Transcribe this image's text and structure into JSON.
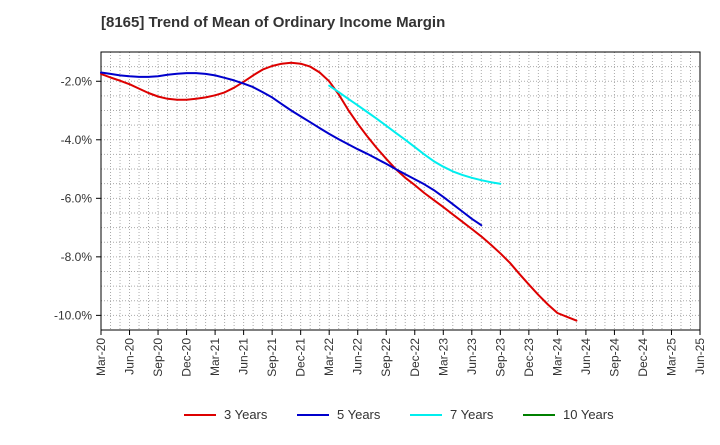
{
  "chart_data": {
    "type": "line",
    "title": "[8165]  Trend of Mean of Ordinary Income Margin",
    "xlabel": "",
    "ylabel": "",
    "x_ticks": [
      "Mar-20",
      "Jun-20",
      "Sep-20",
      "Dec-20",
      "Mar-21",
      "Jun-21",
      "Sep-21",
      "Dec-21",
      "Mar-22",
      "Jun-22",
      "Sep-22",
      "Dec-22",
      "Mar-23",
      "Jun-23",
      "Sep-23",
      "Dec-23",
      "Mar-24",
      "Jun-24",
      "Sep-24",
      "Dec-24",
      "Mar-25",
      "Jun-25"
    ],
    "y_ticks": [
      -2,
      -4,
      -6,
      -8,
      -10
    ],
    "y_tick_labels": [
      "-2.0%",
      "-4.0%",
      "-6.0%",
      "-8.0%",
      "-10.0%"
    ],
    "ylim": [
      -10.5,
      -1.0
    ],
    "grid": true,
    "legend_position": "bottom",
    "series": [
      {
        "name": "3 Years",
        "color": "#dd0000",
        "points": [
          [
            "Mar-20",
            -1.75
          ],
          [
            "Apr-20",
            -1.87
          ],
          [
            "May-20",
            -1.98
          ],
          [
            "Jun-20",
            -2.1
          ],
          [
            "Jul-20",
            -2.25
          ],
          [
            "Aug-20",
            -2.4
          ],
          [
            "Sep-20",
            -2.52
          ],
          [
            "Oct-20",
            -2.6
          ],
          [
            "Nov-20",
            -2.63
          ],
          [
            "Dec-20",
            -2.63
          ],
          [
            "Jan-21",
            -2.6
          ],
          [
            "Feb-21",
            -2.55
          ],
          [
            "Mar-21",
            -2.48
          ],
          [
            "Apr-21",
            -2.38
          ],
          [
            "May-21",
            -2.22
          ],
          [
            "Jun-21",
            -2.02
          ],
          [
            "Jul-21",
            -1.8
          ],
          [
            "Aug-21",
            -1.6
          ],
          [
            "Sep-21",
            -1.48
          ],
          [
            "Oct-21",
            -1.4
          ],
          [
            "Nov-21",
            -1.37
          ],
          [
            "Dec-21",
            -1.4
          ],
          [
            "Jan-22",
            -1.5
          ],
          [
            "Feb-22",
            -1.7
          ],
          [
            "Mar-22",
            -2.0
          ],
          [
            "Apr-22",
            -2.45
          ],
          [
            "May-22",
            -2.98
          ],
          [
            "Jun-22",
            -3.45
          ],
          [
            "Jul-22",
            -3.88
          ],
          [
            "Aug-22",
            -4.28
          ],
          [
            "Sep-22",
            -4.65
          ],
          [
            "Oct-22",
            -5.0
          ],
          [
            "Nov-22",
            -5.3
          ],
          [
            "Dec-22",
            -5.55
          ],
          [
            "Jan-23",
            -5.82
          ],
          [
            "Feb-23",
            -6.06
          ],
          [
            "Mar-23",
            -6.3
          ],
          [
            "Apr-23",
            -6.55
          ],
          [
            "May-23",
            -6.8
          ],
          [
            "Jun-23",
            -7.05
          ],
          [
            "Jul-23",
            -7.3
          ],
          [
            "Aug-23",
            -7.58
          ],
          [
            "Sep-23",
            -7.88
          ],
          [
            "Oct-23",
            -8.2
          ],
          [
            "Nov-23",
            -8.58
          ],
          [
            "Dec-23",
            -8.95
          ],
          [
            "Jan-24",
            -9.3
          ],
          [
            "Feb-24",
            -9.63
          ],
          [
            "Mar-24",
            -9.92
          ],
          [
            "Apr-24",
            -10.05
          ],
          [
            "May-24",
            -10.18
          ]
        ]
      },
      {
        "name": "5 Years",
        "color": "#0000cc",
        "points": [
          [
            "Mar-20",
            -1.7
          ],
          [
            "Apr-20",
            -1.75
          ],
          [
            "May-20",
            -1.8
          ],
          [
            "Jun-20",
            -1.83
          ],
          [
            "Jul-20",
            -1.85
          ],
          [
            "Aug-20",
            -1.85
          ],
          [
            "Sep-20",
            -1.83
          ],
          [
            "Oct-20",
            -1.78
          ],
          [
            "Nov-20",
            -1.74
          ],
          [
            "Dec-20",
            -1.72
          ],
          [
            "Jan-21",
            -1.72
          ],
          [
            "Feb-21",
            -1.75
          ],
          [
            "Mar-21",
            -1.8
          ],
          [
            "Apr-21",
            -1.88
          ],
          [
            "May-21",
            -1.97
          ],
          [
            "Jun-21",
            -2.08
          ],
          [
            "Jul-21",
            -2.2
          ],
          [
            "Aug-21",
            -2.37
          ],
          [
            "Sep-21",
            -2.55
          ],
          [
            "Oct-21",
            -2.78
          ],
          [
            "Nov-21",
            -3.0
          ],
          [
            "Dec-21",
            -3.2
          ],
          [
            "Jan-22",
            -3.4
          ],
          [
            "Feb-22",
            -3.6
          ],
          [
            "Mar-22",
            -3.8
          ],
          [
            "Apr-22",
            -3.98
          ],
          [
            "May-22",
            -4.15
          ],
          [
            "Jun-22",
            -4.32
          ],
          [
            "Jul-22",
            -4.48
          ],
          [
            "Aug-22",
            -4.65
          ],
          [
            "Sep-22",
            -4.82
          ],
          [
            "Oct-22",
            -5.0
          ],
          [
            "Nov-22",
            -5.18
          ],
          [
            "Dec-22",
            -5.35
          ],
          [
            "Jan-23",
            -5.52
          ],
          [
            "Feb-23",
            -5.72
          ],
          [
            "Mar-23",
            -5.95
          ],
          [
            "Apr-23",
            -6.2
          ],
          [
            "May-23",
            -6.45
          ],
          [
            "Jun-23",
            -6.7
          ],
          [
            "Jul-23",
            -6.92
          ]
        ]
      },
      {
        "name": "7 Years",
        "color": "#00eeee",
        "points": [
          [
            "Mar-22",
            -2.15
          ],
          [
            "Apr-22",
            -2.37
          ],
          [
            "May-22",
            -2.6
          ],
          [
            "Jun-22",
            -2.82
          ],
          [
            "Jul-22",
            -3.05
          ],
          [
            "Aug-22",
            -3.28
          ],
          [
            "Sep-22",
            -3.52
          ],
          [
            "Oct-22",
            -3.76
          ],
          [
            "Nov-22",
            -4.0
          ],
          [
            "Dec-22",
            -4.25
          ],
          [
            "Jan-23",
            -4.5
          ],
          [
            "Feb-23",
            -4.73
          ],
          [
            "Mar-23",
            -4.92
          ],
          [
            "Apr-23",
            -5.08
          ],
          [
            "May-23",
            -5.2
          ],
          [
            "Jun-23",
            -5.3
          ],
          [
            "Jul-23",
            -5.38
          ],
          [
            "Aug-23",
            -5.45
          ],
          [
            "Sep-23",
            -5.5
          ]
        ]
      },
      {
        "name": "10 Years",
        "color": "#008000",
        "points": []
      }
    ]
  }
}
